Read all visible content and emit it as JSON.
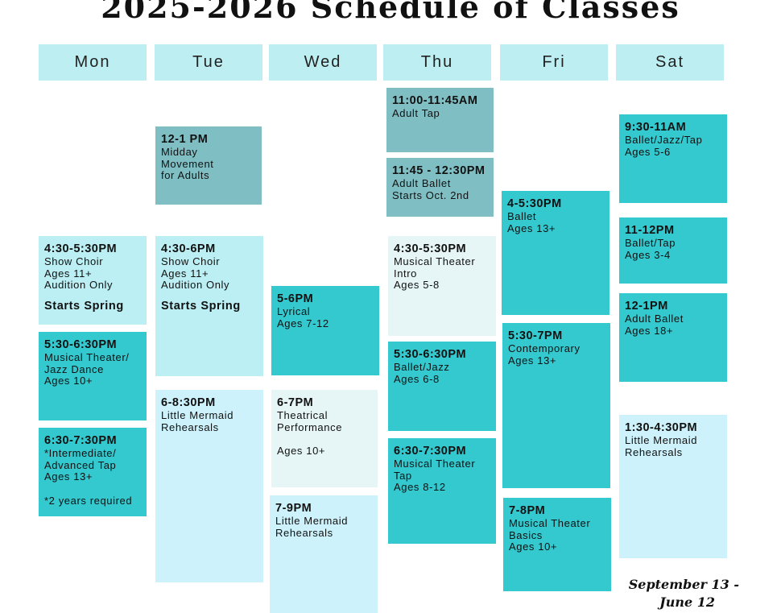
{
  "title": "2025-2026 Schedule of Classes",
  "days": [
    {
      "name": "Mon",
      "classes": [
        {
          "time": "4:30-5:30PM",
          "lines": [
            "Show Choir",
            "Ages 11+",
            "Audition Only"
          ],
          "note": "Starts Spring"
        },
        {
          "time": "5:30-6:30PM",
          "lines": [
            "Musical Theater/",
            "Jazz Dance",
            "Ages 10+"
          ]
        },
        {
          "time": "6:30-7:30PM",
          "lines": [
            "*Intermediate/",
            "Advanced Tap",
            "Ages 13+"
          ],
          "note": "*2 years required"
        }
      ]
    },
    {
      "name": "Tue",
      "classes": [
        {
          "time": "12-1 PM",
          "lines": [
            "Midday",
            "Movement",
            "for Adults"
          ]
        },
        {
          "time": "4:30-6PM",
          "lines": [
            "Show Choir",
            "Ages 11+",
            "Audition Only"
          ],
          "note": "Starts Spring"
        },
        {
          "time": "6-8:30PM",
          "lines": [
            "Little Mermaid",
            "Rehearsals"
          ]
        }
      ]
    },
    {
      "name": "Wed",
      "classes": [
        {
          "time": "5-6PM",
          "lines": [
            "Lyrical",
            "Ages 7-12"
          ]
        },
        {
          "time": "6-7PM",
          "lines": [
            "Theatrical",
            "Performance"
          ],
          "note": "Ages 10+"
        },
        {
          "time": "7-9PM",
          "lines": [
            "Little Mermaid",
            "Rehearsals"
          ]
        }
      ]
    },
    {
      "name": "Thu",
      "classes": [
        {
          "time": "11:00-11:45AM",
          "lines": [
            "Adult Tap"
          ]
        },
        {
          "time": "11:45 - 12:30PM",
          "lines": [
            "Adult Ballet",
            "Starts Oct. 2nd"
          ]
        },
        {
          "time": "4:30-5:30PM",
          "lines": [
            "Musical Theater",
            "Intro",
            "Ages 5-8"
          ]
        },
        {
          "time": "5:30-6:30PM",
          "lines": [
            "Ballet/Jazz",
            "Ages 6-8"
          ]
        },
        {
          "time": "6:30-7:30PM",
          "lines": [
            "Musical Theater",
            "Tap",
            "Ages 8-12"
          ]
        }
      ]
    },
    {
      "name": "Fri",
      "classes": [
        {
          "time": "4-5:30PM",
          "lines": [
            "Ballet",
            "Ages 13+"
          ]
        },
        {
          "time": "5:30-7PM",
          "lines": [
            "Contemporary",
            "Ages 13+"
          ]
        },
        {
          "time": "7-8PM",
          "lines": [
            "Musical Theater",
            "Basics",
            "Ages 10+"
          ]
        }
      ]
    },
    {
      "name": "Sat",
      "classes": [
        {
          "time": "9:30-11AM",
          "lines": [
            "Ballet/Jazz/Tap",
            "Ages 5-6"
          ]
        },
        {
          "time": "11-12PM",
          "lines": [
            "Ballet/Tap",
            "Ages 3-4"
          ]
        },
        {
          "time": "12-1PM",
          "lines": [
            "Adult Ballet",
            "Ages 18+"
          ]
        },
        {
          "time": "1:30-4:30PM",
          "lines": [
            "Little Mermaid",
            "Rehearsals"
          ]
        }
      ]
    }
  ],
  "footer": [
    "September 13 -",
    "June 12"
  ]
}
